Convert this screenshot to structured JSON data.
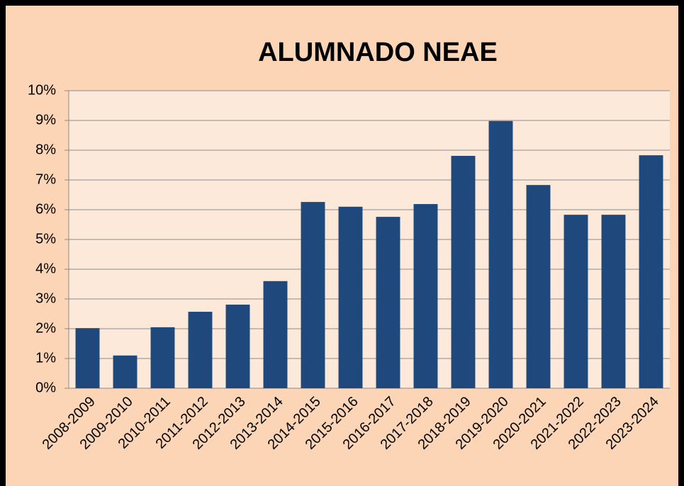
{
  "chart_data": {
    "type": "bar",
    "title": "ALUMNADO NEAE",
    "categories": [
      "2008-2009",
      "2009-2010",
      "2010-2011",
      "2011-2012",
      "2012-2013",
      "2013-2014",
      "2014-2015",
      "2015-2016",
      "2016-2017",
      "2017-2018",
      "2018-2019",
      "2019-2020",
      "2020-2021",
      "2021-2022",
      "2022-2023",
      "2023-2024"
    ],
    "values": [
      2.02,
      1.1,
      2.05,
      2.57,
      2.81,
      3.6,
      6.26,
      6.1,
      5.76,
      6.19,
      7.81,
      8.98,
      6.83,
      5.83,
      5.83,
      7.83
    ],
    "color": "#1f497d",
    "ylim": [
      0,
      10
    ],
    "yticks": [
      {
        "value": 0,
        "label": "0%"
      },
      {
        "value": 1,
        "label": "1%"
      },
      {
        "value": 2,
        "label": "2%"
      },
      {
        "value": 3,
        "label": "3%"
      },
      {
        "value": 4,
        "label": "4%"
      },
      {
        "value": 5,
        "label": "5%"
      },
      {
        "value": 6,
        "label": "6%"
      },
      {
        "value": 7,
        "label": "7%"
      },
      {
        "value": 8,
        "label": "8%"
      },
      {
        "value": 9,
        "label": "9%"
      },
      {
        "value": 10,
        "label": "10%"
      }
    ],
    "grid": true
  }
}
